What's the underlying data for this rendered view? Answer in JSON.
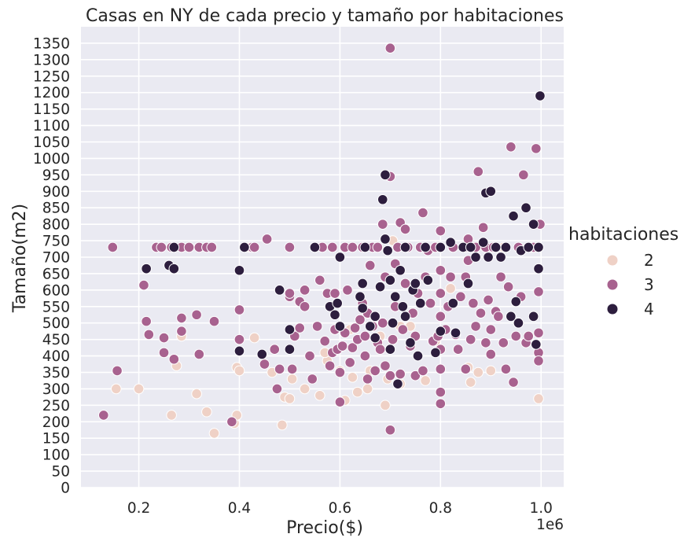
{
  "chart_data": {
    "type": "scatter",
    "title": "Casas en NY de cada precio y tamaño por habitaciones",
    "xlabel": "Precio($)",
    "ylabel": "Tamaño(m2)",
    "x_offset_label": "1e6",
    "x_unit_multiplier": 1000000,
    "xlim": [
      0.085,
      1.045
    ],
    "ylim": [
      0,
      1400
    ],
    "x_ticks": [
      "0.2",
      "0.4",
      "0.6",
      "0.8",
      "1.0"
    ],
    "x_tick_values": [
      0.2,
      0.4,
      0.6,
      0.8,
      1.0
    ],
    "y_ticks": [
      0,
      50,
      100,
      150,
      200,
      250,
      300,
      350,
      400,
      450,
      500,
      550,
      600,
      650,
      700,
      750,
      800,
      850,
      900,
      950,
      1000,
      1050,
      1100,
      1150,
      1200,
      1250,
      1300,
      1350
    ],
    "grid": true,
    "background": "#eaeaf2",
    "legend": {
      "title": "habitaciones",
      "placement": "right"
    },
    "series": [
      {
        "name": "2",
        "color": "#efd1c6",
        "points": [
          [
            0.155,
            300
          ],
          [
            0.2,
            300
          ],
          [
            0.265,
            220
          ],
          [
            0.275,
            370
          ],
          [
            0.285,
            460
          ],
          [
            0.315,
            285
          ],
          [
            0.335,
            230
          ],
          [
            0.35,
            165
          ],
          [
            0.39,
            195
          ],
          [
            0.395,
            220
          ],
          [
            0.395,
            365
          ],
          [
            0.4,
            355
          ],
          [
            0.42,
            730
          ],
          [
            0.43,
            455
          ],
          [
            0.465,
            350
          ],
          [
            0.485,
            190
          ],
          [
            0.49,
            275
          ],
          [
            0.5,
            270
          ],
          [
            0.505,
            330
          ],
          [
            0.53,
            300
          ],
          [
            0.56,
            280
          ],
          [
            0.575,
            385
          ],
          [
            0.6,
            355
          ],
          [
            0.61,
            265
          ],
          [
            0.625,
            335
          ],
          [
            0.635,
            290
          ],
          [
            0.655,
            300
          ],
          [
            0.66,
            355
          ],
          [
            0.69,
            250
          ],
          [
            0.695,
            330
          ],
          [
            0.705,
            750
          ],
          [
            0.72,
            315
          ],
          [
            0.72,
            490
          ],
          [
            0.74,
            490
          ],
          [
            0.77,
            325
          ],
          [
            0.79,
            445
          ],
          [
            0.82,
            605
          ],
          [
            0.855,
            365
          ],
          [
            0.86,
            320
          ],
          [
            0.875,
            350
          ],
          [
            0.9,
            355
          ],
          [
            0.925,
            730
          ],
          [
            0.995,
            270
          ],
          [
            0.62,
            480
          ],
          [
            0.68,
            460
          ],
          [
            0.57,
            410
          ]
        ]
      },
      {
        "name": "3",
        "color": "#a8628f",
        "points": [
          [
            0.13,
            220
          ],
          [
            0.148,
            730
          ],
          [
            0.157,
            355
          ],
          [
            0.21,
            615
          ],
          [
            0.215,
            505
          ],
          [
            0.22,
            465
          ],
          [
            0.235,
            730
          ],
          [
            0.245,
            730
          ],
          [
            0.25,
            410
          ],
          [
            0.25,
            455
          ],
          [
            0.265,
            730
          ],
          [
            0.27,
            390
          ],
          [
            0.285,
            730
          ],
          [
            0.285,
            475
          ],
          [
            0.285,
            515
          ],
          [
            0.3,
            730
          ],
          [
            0.315,
            525
          ],
          [
            0.32,
            730
          ],
          [
            0.32,
            405
          ],
          [
            0.335,
            730
          ],
          [
            0.345,
            730
          ],
          [
            0.35,
            505
          ],
          [
            0.385,
            200
          ],
          [
            0.4,
            540
          ],
          [
            0.4,
            450
          ],
          [
            0.425,
            730
          ],
          [
            0.43,
            730
          ],
          [
            0.45,
            375
          ],
          [
            0.455,
            755
          ],
          [
            0.47,
            420
          ],
          [
            0.475,
            300
          ],
          [
            0.48,
            360
          ],
          [
            0.5,
            580
          ],
          [
            0.5,
            590
          ],
          [
            0.5,
            730
          ],
          [
            0.505,
            360
          ],
          [
            0.51,
            460
          ],
          [
            0.52,
            485
          ],
          [
            0.52,
            565
          ],
          [
            0.53,
            600
          ],
          [
            0.53,
            550
          ],
          [
            0.54,
            400
          ],
          [
            0.545,
            330
          ],
          [
            0.55,
            730
          ],
          [
            0.555,
            490
          ],
          [
            0.56,
            630
          ],
          [
            0.565,
            730
          ],
          [
            0.57,
            445
          ],
          [
            0.575,
            590
          ],
          [
            0.58,
            370
          ],
          [
            0.585,
            730
          ],
          [
            0.585,
            410
          ],
          [
            0.59,
            480
          ],
          [
            0.59,
            590
          ],
          [
            0.595,
            420
          ],
          [
            0.6,
            350
          ],
          [
            0.6,
            260
          ],
          [
            0.605,
            430
          ],
          [
            0.61,
            470
          ],
          [
            0.61,
            730
          ],
          [
            0.615,
            600
          ],
          [
            0.62,
            380
          ],
          [
            0.625,
            730
          ],
          [
            0.625,
            425
          ],
          [
            0.63,
            485
          ],
          [
            0.635,
            450
          ],
          [
            0.64,
            510
          ],
          [
            0.645,
            560
          ],
          [
            0.645,
            730
          ],
          [
            0.65,
            400
          ],
          [
            0.65,
            460
          ],
          [
            0.655,
            330
          ],
          [
            0.655,
            530
          ],
          [
            0.66,
            675
          ],
          [
            0.665,
            490
          ],
          [
            0.665,
            730
          ],
          [
            0.67,
            355
          ],
          [
            0.675,
            440
          ],
          [
            0.675,
            730
          ],
          [
            0.68,
            420
          ],
          [
            0.685,
            500
          ],
          [
            0.685,
            800
          ],
          [
            0.69,
            370
          ],
          [
            0.69,
            640
          ],
          [
            0.695,
            720
          ],
          [
            0.7,
            175
          ],
          [
            0.7,
            945
          ],
          [
            0.7,
            340
          ],
          [
            0.7,
            1335
          ],
          [
            0.705,
            450
          ],
          [
            0.71,
            550
          ],
          [
            0.71,
            680
          ],
          [
            0.715,
            730
          ],
          [
            0.72,
            345
          ],
          [
            0.72,
            805
          ],
          [
            0.725,
            480
          ],
          [
            0.73,
            620
          ],
          [
            0.73,
            785
          ],
          [
            0.735,
            730
          ],
          [
            0.74,
            430
          ],
          [
            0.745,
            530
          ],
          [
            0.75,
            340
          ],
          [
            0.75,
            460
          ],
          [
            0.755,
            590
          ],
          [
            0.76,
            730
          ],
          [
            0.765,
            835
          ],
          [
            0.765,
            355
          ],
          [
            0.77,
            640
          ],
          [
            0.775,
            720
          ],
          [
            0.78,
            560
          ],
          [
            0.785,
            445
          ],
          [
            0.79,
            730
          ],
          [
            0.795,
            460
          ],
          [
            0.8,
            255
          ],
          [
            0.8,
            290
          ],
          [
            0.8,
            360
          ],
          [
            0.8,
            420
          ],
          [
            0.8,
            520
          ],
          [
            0.8,
            590
          ],
          [
            0.8,
            660
          ],
          [
            0.8,
            730
          ],
          [
            0.8,
            780
          ],
          [
            0.81,
            480
          ],
          [
            0.815,
            550
          ],
          [
            0.82,
            640
          ],
          [
            0.825,
            730
          ],
          [
            0.83,
            465
          ],
          [
            0.835,
            420
          ],
          [
            0.84,
            580
          ],
          [
            0.85,
            360
          ],
          [
            0.85,
            640
          ],
          [
            0.85,
            730
          ],
          [
            0.855,
            690
          ],
          [
            0.855,
            755
          ],
          [
            0.86,
            450
          ],
          [
            0.865,
            560
          ],
          [
            0.87,
            490
          ],
          [
            0.87,
            730
          ],
          [
            0.875,
            960
          ],
          [
            0.88,
            530
          ],
          [
            0.885,
            790
          ],
          [
            0.89,
            440
          ],
          [
            0.89,
            730
          ],
          [
            0.895,
            570
          ],
          [
            0.9,
            480
          ],
          [
            0.9,
            405
          ],
          [
            0.905,
            730
          ],
          [
            0.91,
            535
          ],
          [
            0.915,
            520
          ],
          [
            0.92,
            640
          ],
          [
            0.925,
            440
          ],
          [
            0.93,
            360
          ],
          [
            0.935,
            610
          ],
          [
            0.94,
            1035
          ],
          [
            0.945,
            320
          ],
          [
            0.95,
            460
          ],
          [
            0.955,
            730
          ],
          [
            0.96,
            580
          ],
          [
            0.965,
            950
          ],
          [
            0.97,
            440
          ],
          [
            0.975,
            460
          ],
          [
            0.98,
            730
          ],
          [
            0.985,
            730
          ],
          [
            0.99,
            1030
          ],
          [
            0.995,
            410
          ],
          [
            0.995,
            470
          ],
          [
            0.995,
            595
          ],
          [
            0.995,
            385
          ],
          [
            0.998,
            800
          ]
        ]
      },
      {
        "name": "4",
        "color": "#2d1e3e",
        "points": [
          [
            0.215,
            665
          ],
          [
            0.26,
            675
          ],
          [
            0.27,
            730
          ],
          [
            0.27,
            665
          ],
          [
            0.4,
            660
          ],
          [
            0.4,
            415
          ],
          [
            0.41,
            730
          ],
          [
            0.445,
            405
          ],
          [
            0.48,
            600
          ],
          [
            0.5,
            480
          ],
          [
            0.5,
            420
          ],
          [
            0.55,
            730
          ],
          [
            0.58,
            550
          ],
          [
            0.59,
            525
          ],
          [
            0.595,
            560
          ],
          [
            0.6,
            700
          ],
          [
            0.6,
            490
          ],
          [
            0.64,
            580
          ],
          [
            0.645,
            545
          ],
          [
            0.645,
            620
          ],
          [
            0.65,
            730
          ],
          [
            0.66,
            490
          ],
          [
            0.67,
            455
          ],
          [
            0.67,
            520
          ],
          [
            0.68,
            610
          ],
          [
            0.685,
            875
          ],
          [
            0.69,
            950
          ],
          [
            0.69,
            755
          ],
          [
            0.695,
            720
          ],
          [
            0.7,
            630
          ],
          [
            0.7,
            420
          ],
          [
            0.705,
            500
          ],
          [
            0.71,
            580
          ],
          [
            0.715,
            315
          ],
          [
            0.72,
            660
          ],
          [
            0.725,
            550
          ],
          [
            0.73,
            730
          ],
          [
            0.73,
            520
          ],
          [
            0.74,
            440
          ],
          [
            0.745,
            600
          ],
          [
            0.75,
            620
          ],
          [
            0.755,
            400
          ],
          [
            0.76,
            560
          ],
          [
            0.77,
            730
          ],
          [
            0.775,
            630
          ],
          [
            0.79,
            410
          ],
          [
            0.8,
            730
          ],
          [
            0.8,
            475
          ],
          [
            0.82,
            745
          ],
          [
            0.825,
            560
          ],
          [
            0.83,
            470
          ],
          [
            0.845,
            730
          ],
          [
            0.855,
            620
          ],
          [
            0.86,
            730
          ],
          [
            0.87,
            700
          ],
          [
            0.885,
            745
          ],
          [
            0.89,
            895
          ],
          [
            0.895,
            700
          ],
          [
            0.9,
            900
          ],
          [
            0.91,
            730
          ],
          [
            0.92,
            700
          ],
          [
            0.93,
            730
          ],
          [
            0.94,
            520
          ],
          [
            0.945,
            825
          ],
          [
            0.95,
            565
          ],
          [
            0.955,
            500
          ],
          [
            0.96,
            720
          ],
          [
            0.97,
            850
          ],
          [
            0.975,
            730
          ],
          [
            0.985,
            800
          ],
          [
            0.985,
            520
          ],
          [
            0.99,
            435
          ],
          [
            0.995,
            730
          ],
          [
            0.995,
            665
          ],
          [
            0.998,
            1190
          ]
        ]
      }
    ]
  }
}
